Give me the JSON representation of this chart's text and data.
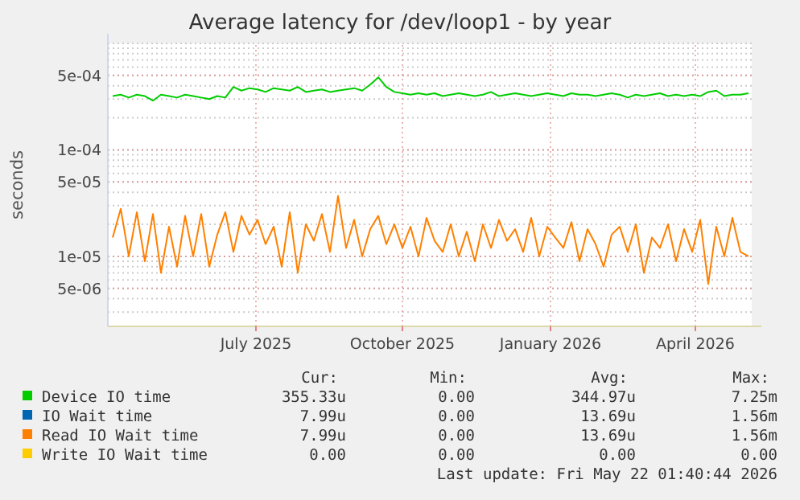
{
  "chart_data": {
    "type": "line",
    "title": "Average latency for /dev/loop1 - by year",
    "ylabel": "seconds",
    "log": "y",
    "grid": true,
    "legend": "bottom",
    "line_style": "solid",
    "marker": "none",
    "x": [
      "2025-04-18",
      "2025-04-23",
      "2025-04-28",
      "2025-05-03",
      "2025-05-08",
      "2025-05-13",
      "2025-05-18",
      "2025-05-23",
      "2025-05-28",
      "2025-06-02",
      "2025-06-07",
      "2025-06-12",
      "2025-06-17",
      "2025-06-22",
      "2025-06-27",
      "2025-07-02",
      "2025-07-07",
      "2025-07-12",
      "2025-07-17",
      "2025-07-22",
      "2025-07-27",
      "2025-08-01",
      "2025-08-06",
      "2025-08-11",
      "2025-08-16",
      "2025-08-21",
      "2025-08-26",
      "2025-08-31",
      "2025-09-05",
      "2025-09-10",
      "2025-09-15",
      "2025-09-20",
      "2025-09-25",
      "2025-09-30",
      "2025-10-05",
      "2025-10-10",
      "2025-10-15",
      "2025-10-20",
      "2025-10-25",
      "2025-10-30",
      "2025-11-04",
      "2025-11-09",
      "2025-11-14",
      "2025-11-19",
      "2025-11-24",
      "2025-11-29",
      "2025-12-04",
      "2025-12-09",
      "2025-12-14",
      "2025-12-19",
      "2025-12-24",
      "2025-12-29",
      "2026-01-03",
      "2026-01-08",
      "2026-01-13",
      "2026-01-18",
      "2026-01-23",
      "2026-01-28",
      "2026-02-02",
      "2026-02-07",
      "2026-02-12",
      "2026-02-17",
      "2026-02-22",
      "2026-02-27",
      "2026-03-04",
      "2026-03-09",
      "2026-03-14",
      "2026-03-19",
      "2026-03-24",
      "2026-03-29",
      "2026-04-03",
      "2026-04-08",
      "2026-04-13",
      "2026-04-18",
      "2026-04-23",
      "2026-04-28",
      "2026-05-03",
      "2026-05-08",
      "2026-05-13",
      "2026-05-18"
    ],
    "xlim": [
      "2025-04-15",
      "2026-05-20"
    ],
    "xticks": [
      {
        "value": "2025-07-16",
        "label": "July 2025"
      },
      {
        "value": "2025-10-15",
        "label": "October 2025"
      },
      {
        "value": "2026-01-15",
        "label": "January 2026"
      },
      {
        "value": "2026-04-15",
        "label": "April 2026"
      }
    ],
    "ylim": [
      2.2e-06,
      0.001
    ],
    "yticks": [
      {
        "value": 0.0005,
        "label": "5e-04"
      },
      {
        "value": 0.0001,
        "label": "1e-04"
      },
      {
        "value": 5e-05,
        "label": "5e-05"
      },
      {
        "value": 1e-05,
        "label": "1e-05"
      },
      {
        "value": 5e-06,
        "label": "5e-06"
      }
    ],
    "series": [
      {
        "name": "Device IO time",
        "color": "#00cc00",
        "values": [
          0.00032,
          0.00033,
          0.00031,
          0.00033,
          0.00032,
          0.00029,
          0.00033,
          0.00032,
          0.00031,
          0.00033,
          0.00032,
          0.00031,
          0.0003,
          0.00032,
          0.00031,
          0.00039,
          0.00036,
          0.00038,
          0.00037,
          0.00035,
          0.00038,
          0.00037,
          0.00036,
          0.00039,
          0.00035,
          0.00036,
          0.00037,
          0.00035,
          0.00036,
          0.00037,
          0.00038,
          0.00036,
          0.00041,
          0.00048,
          0.00039,
          0.00035,
          0.00034,
          0.00033,
          0.00034,
          0.00033,
          0.00034,
          0.00032,
          0.00033,
          0.00034,
          0.00033,
          0.00032,
          0.00033,
          0.00035,
          0.00032,
          0.00033,
          0.00034,
          0.00033,
          0.00032,
          0.00033,
          0.00034,
          0.00033,
          0.00032,
          0.00034,
          0.00033,
          0.00033,
          0.00032,
          0.00033,
          0.00034,
          0.00033,
          0.00031,
          0.00033,
          0.00032,
          0.00033,
          0.00034,
          0.00032,
          0.00033,
          0.00032,
          0.00033,
          0.00032,
          0.00035,
          0.00036,
          0.00032,
          0.00033,
          0.00033,
          0.00034
        ]
      },
      {
        "name": "IO Wait time",
        "color": "#0066b3",
        "values": [
          null,
          null,
          null,
          null,
          null,
          null,
          null,
          null,
          null,
          null,
          null,
          null,
          null,
          null,
          null,
          null,
          null,
          null,
          null,
          null,
          null,
          null,
          null,
          null,
          null,
          null,
          null,
          null,
          null,
          null,
          null,
          null,
          null,
          null,
          null,
          null,
          null,
          null,
          null,
          null,
          null,
          null,
          null,
          null,
          null,
          null,
          null,
          null,
          null,
          null,
          null,
          null,
          null,
          null,
          null,
          null,
          null,
          null,
          null,
          null,
          null,
          null,
          null,
          null,
          null,
          null,
          null,
          null,
          null,
          null,
          null,
          null,
          null,
          null,
          null,
          null,
          null,
          null,
          null,
          null
        ]
      },
      {
        "name": "Read IO Wait time",
        "color": "#ff8000",
        "values": [
          1.5e-05,
          2.8e-05,
          1e-05,
          2.6e-05,
          9e-06,
          2.5e-05,
          7e-06,
          1.9e-05,
          8e-06,
          2.4e-05,
          1e-05,
          2.5e-05,
          8e-06,
          1.6e-05,
          2.6e-05,
          1.1e-05,
          2.4e-05,
          1.6e-05,
          2.2e-05,
          1.3e-05,
          1.9e-05,
          8e-06,
          2.6e-05,
          7e-06,
          2e-05,
          1.4e-05,
          2.5e-05,
          1.1e-05,
          3.7e-05,
          1.2e-05,
          2.2e-05,
          1e-05,
          1.8e-05,
          2.4e-05,
          1.3e-05,
          2e-05,
          1.2e-05,
          1.9e-05,
          1e-05,
          2.3e-05,
          1.4e-05,
          1.1e-05,
          2e-05,
          1e-05,
          1.7e-05,
          9e-06,
          2e-05,
          1.2e-05,
          2.2e-05,
          1.4e-05,
          1.8e-05,
          1.1e-05,
          2.3e-05,
          1e-05,
          1.9e-05,
          1.5e-05,
          1.2e-05,
          2.1e-05,
          9e-06,
          1.8e-05,
          1.3e-05,
          8e-06,
          1.6e-05,
          1.9e-05,
          1.1e-05,
          2e-05,
          7e-06,
          1.5e-05,
          1.2e-05,
          2e-05,
          9e-06,
          1.8e-05,
          1.1e-05,
          2.2e-05,
          5.5e-06,
          1.9e-05,
          1e-05,
          2.3e-05,
          1.1e-05,
          1e-05
        ]
      },
      {
        "name": "Write IO Wait time",
        "color": "#ffcc00",
        "values": [
          null,
          null,
          null,
          null,
          null,
          null,
          null,
          null,
          null,
          null,
          null,
          null,
          null,
          null,
          null,
          null,
          null,
          null,
          null,
          null,
          null,
          null,
          null,
          null,
          null,
          null,
          null,
          null,
          null,
          null,
          null,
          null,
          null,
          null,
          null,
          null,
          null,
          null,
          null,
          null,
          null,
          null,
          null,
          null,
          null,
          null,
          null,
          null,
          null,
          null,
          null,
          null,
          null,
          null,
          null,
          null,
          null,
          null,
          null,
          null,
          null,
          null,
          null,
          null,
          null,
          null,
          null,
          null,
          null,
          null,
          null,
          null,
          null,
          null,
          null,
          null,
          null,
          null,
          null,
          null
        ]
      }
    ],
    "annotations": [
      "Cur:",
      "Min:",
      "Avg:",
      "Max:",
      "355.33u",
      "0.00",
      "344.97u",
      "7.25m",
      "7.99u",
      "0.00",
      "13.69u",
      "1.56m",
      "7.99u",
      "0.00",
      "13.69u",
      "1.56m",
      "0.00",
      "0.00",
      "0.00",
      "0.00",
      "Last update: Fri May 22 01:40:44 2026"
    ]
  }
}
